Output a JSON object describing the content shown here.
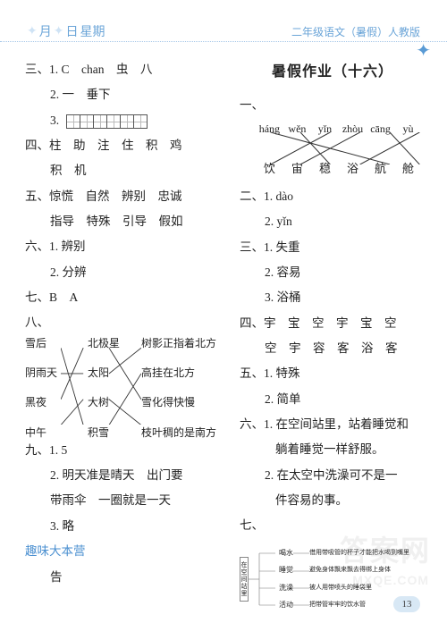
{
  "header": {
    "left_parts": [
      "月",
      "日",
      "星期"
    ],
    "right": "二年级语文（暑假）人教版"
  },
  "left": {
    "l3": "三、1. C　chan　虫　八",
    "l3b": "2. 一　垂下",
    "l3c": "3.",
    "l4": "四、柱　助　注　住　积　鸡",
    "l4b": "积　机",
    "l5": "五、惊慌　自然　辨别　忠诚",
    "l5b": "指导　特殊　引导　假如",
    "l6": "六、1. 辨别",
    "l6b": "2. 分辨",
    "l7": "七、B　A",
    "l8": "八、",
    "cross_left": [
      "雪后",
      "阴雨天",
      "黑夜",
      "中午"
    ],
    "cross_right": [
      "北极星",
      "太阳",
      "大树",
      "积雪"
    ],
    "cross_far": [
      "树影正指着北方",
      "高挂在北方",
      "雪化得快慢",
      "枝叶稠的是南方"
    ],
    "cross_edges": [
      [
        0,
        1
      ],
      [
        1,
        3
      ],
      [
        2,
        0
      ],
      [
        3,
        2
      ],
      [
        0,
        3
      ],
      [
        1,
        1
      ],
      [
        2,
        0
      ],
      [
        3,
        2
      ]
    ],
    "l9": "九、1. 5",
    "l9b": "2. 明天准是晴天　出门要",
    "l9c": "带雨伞　一圈就是一天",
    "l9d": "3. 略",
    "fun": "趣味大本营",
    "fun_ans": "告"
  },
  "right": {
    "title": "暑假作业（十六）",
    "l1_label": "一、",
    "p_top": [
      "háng",
      "wěn",
      "yǐn",
      "zhòu",
      "cāng",
      "yù"
    ],
    "p_bot": [
      "饮",
      "宙",
      "稳",
      "浴",
      "航",
      "舱"
    ],
    "p_edges": [
      [
        0,
        4
      ],
      [
        1,
        2
      ],
      [
        2,
        0
      ],
      [
        3,
        1
      ],
      [
        4,
        5
      ],
      [
        5,
        3
      ]
    ],
    "l2": "二、1. dào",
    "l2b": "2. yǐn",
    "l3": "三、1. 失重",
    "l3b": "2. 容易",
    "l3c": "3. 浴桶",
    "l4": "四、宇　宝　空　宇　宝　空",
    "l4b": "空　宇　容　客　浴　客",
    "l5": "五、1. 特殊",
    "l5b": "2. 简单",
    "l6": "六、1. 在空间站里，站着睡觉和",
    "l6b": "躺着睡觉一样舒服。",
    "l6c": "2. 在太空中洗澡可不是一",
    "l6d": "件容易的事。",
    "l7": "七、",
    "mm_root": "在空间站里",
    "mm_mid": [
      "喝水",
      "睡觉",
      "洗澡",
      "活动"
    ],
    "mm_right": [
      "借用带吸管的杯子才能把水喝到嘴里",
      "避免身体飘来飘去得绑上身体",
      "被人用带喷头的睡袋里",
      "把带管牢牢的饮水管"
    ]
  },
  "page": "13",
  "colors": {
    "header_blue": "#6ba5d8",
    "accent_blue": "#4a8fd0",
    "line": "#333333"
  }
}
